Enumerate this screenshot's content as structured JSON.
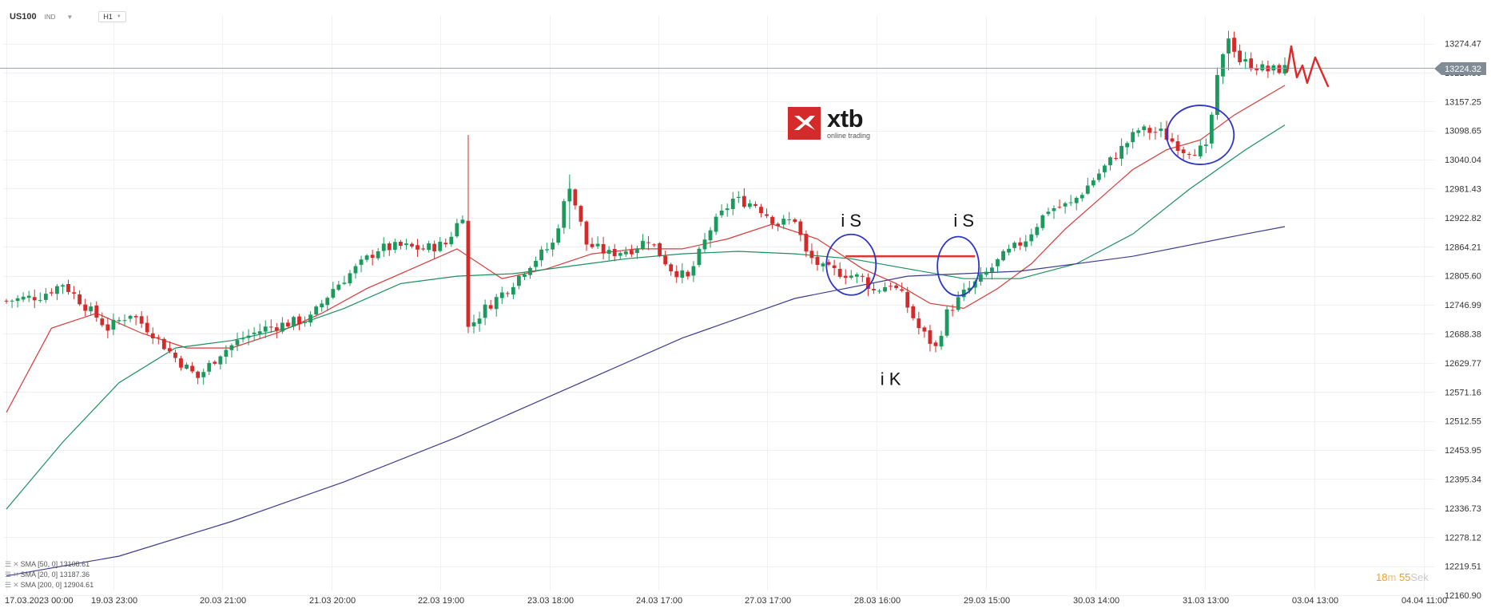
{
  "header": {
    "symbol": "US100",
    "asset_type": "IND",
    "timeframe": "H1"
  },
  "logo": {
    "name": "xtb",
    "tagline": "online trading"
  },
  "legend": [
    {
      "label": "SMA [50, 0] 13108.61"
    },
    {
      "label": "SMA [20, 0] 13187.36"
    },
    {
      "label": "SMA [200, 0] 12904.61"
    }
  ],
  "timer": {
    "minutes": "18",
    "minutes_unit": "m",
    "seconds": "55",
    "seconds_unit": "Sek"
  },
  "colors": {
    "bull": "#1a9a5c",
    "bear": "#d42a2a",
    "sma_red": "#d83a3a",
    "sma_green": "#1b8f5e",
    "sma_blue": "#3b3b8f",
    "circle": "#2d34c8",
    "current_price_bg": "#808b96"
  },
  "chart_data": {
    "type": "candlestick",
    "title": "",
    "ylim": [
      12130,
      13330
    ],
    "y_ticks": [
      13274.47,
      13215.86,
      13157.25,
      13098.65,
      13040.04,
      12981.43,
      12922.82,
      12864.21,
      12805.6,
      12746.99,
      12688.38,
      12629.77,
      12571.16,
      12512.55,
      12453.95,
      12395.34,
      12336.73,
      12278.12,
      12219.51,
      12160.9
    ],
    "x_ticks": [
      "17.03.2023 00:00",
      "19.03 23:00",
      "20.03 21:00",
      "21.03 20:00",
      "22.03 19:00",
      "23.03 18:00",
      "24.03 17:00",
      "27.03 17:00",
      "28.03 16:00",
      "29.03 15:00",
      "30.03 14:00",
      "31.03 13:00",
      "03.04 13:00",
      "04.04 11:00"
    ],
    "current_price": 13224.32,
    "candles_count": 228,
    "close_path": [
      [
        0,
        12755
      ],
      [
        6,
        12765
      ],
      [
        10,
        12790
      ],
      [
        14,
        12745
      ],
      [
        18,
        12700
      ],
      [
        22,
        12730
      ],
      [
        26,
        12690
      ],
      [
        30,
        12640
      ],
      [
        34,
        12600
      ],
      [
        38,
        12650
      ],
      [
        42,
        12680
      ],
      [
        46,
        12700
      ],
      [
        50,
        12710
      ],
      [
        54,
        12720
      ],
      [
        58,
        12780
      ],
      [
        62,
        12820
      ],
      [
        66,
        12860
      ],
      [
        70,
        12865
      ],
      [
        74,
        12860
      ],
      [
        78,
        12870
      ],
      [
        81,
        12930
      ],
      [
        82,
        12700
      ],
      [
        85,
        12740
      ],
      [
        89,
        12780
      ],
      [
        93,
        12830
      ],
      [
        97,
        12870
      ],
      [
        100,
        12990
      ],
      [
        103,
        12870
      ],
      [
        107,
        12850
      ],
      [
        111,
        12860
      ],
      [
        114,
        12880
      ],
      [
        118,
        12820
      ],
      [
        121,
        12800
      ],
      [
        125,
        12900
      ],
      [
        129,
        12960
      ],
      [
        133,
        12950
      ],
      [
        137,
        12910
      ],
      [
        140,
        12920
      ],
      [
        142,
        12850
      ],
      [
        145,
        12820
      ],
      [
        149,
        12810
      ],
      [
        152,
        12800
      ],
      [
        154,
        12775
      ],
      [
        157,
        12790
      ],
      [
        159,
        12765
      ],
      [
        162,
        12700
      ],
      [
        165,
        12660
      ],
      [
        167,
        12730
      ],
      [
        170,
        12770
      ],
      [
        173,
        12800
      ],
      [
        177,
        12845
      ],
      [
        181,
        12880
      ],
      [
        185,
        12940
      ],
      [
        189,
        12950
      ],
      [
        193,
        13000
      ],
      [
        197,
        13050
      ],
      [
        201,
        13100
      ],
      [
        205,
        13095
      ],
      [
        209,
        13060
      ],
      [
        213,
        13060
      ],
      [
        215,
        13200
      ],
      [
        217,
        13290
      ],
      [
        219,
        13240
      ],
      [
        224,
        13220
      ],
      [
        227,
        13224
      ]
    ],
    "series": [
      {
        "name": "SMA [20, 0]",
        "color": "#d83a3a",
        "points": [
          [
            0,
            12530
          ],
          [
            8,
            12700
          ],
          [
            16,
            12730
          ],
          [
            24,
            12690
          ],
          [
            32,
            12660
          ],
          [
            40,
            12660
          ],
          [
            48,
            12690
          ],
          [
            56,
            12730
          ],
          [
            64,
            12780
          ],
          [
            72,
            12820
          ],
          [
            80,
            12860
          ],
          [
            88,
            12800
          ],
          [
            96,
            12820
          ],
          [
            104,
            12850
          ],
          [
            112,
            12860
          ],
          [
            120,
            12860
          ],
          [
            128,
            12880
          ],
          [
            136,
            12910
          ],
          [
            144,
            12880
          ],
          [
            152,
            12820
          ],
          [
            158,
            12790
          ],
          [
            164,
            12750
          ],
          [
            170,
            12740
          ],
          [
            176,
            12780
          ],
          [
            182,
            12830
          ],
          [
            188,
            12900
          ],
          [
            194,
            12960
          ],
          [
            200,
            13020
          ],
          [
            206,
            13060
          ],
          [
            212,
            13080
          ],
          [
            218,
            13130
          ],
          [
            224,
            13170
          ],
          [
            227,
            13190
          ]
        ]
      },
      {
        "name": "SMA [50, 0]",
        "color": "#1b8f5e",
        "points": [
          [
            0,
            12335
          ],
          [
            10,
            12470
          ],
          [
            20,
            12590
          ],
          [
            30,
            12660
          ],
          [
            40,
            12675
          ],
          [
            50,
            12700
          ],
          [
            60,
            12740
          ],
          [
            70,
            12790
          ],
          [
            80,
            12805
          ],
          [
            90,
            12810
          ],
          [
            100,
            12825
          ],
          [
            110,
            12840
          ],
          [
            120,
            12850
          ],
          [
            130,
            12855
          ],
          [
            140,
            12850
          ],
          [
            150,
            12840
          ],
          [
            160,
            12820
          ],
          [
            170,
            12800
          ],
          [
            180,
            12800
          ],
          [
            190,
            12830
          ],
          [
            200,
            12890
          ],
          [
            210,
            12980
          ],
          [
            220,
            13060
          ],
          [
            227,
            13110
          ]
        ]
      },
      {
        "name": "SMA [200, 0]",
        "color": "#3b3b8f",
        "points": [
          [
            0,
            12200
          ],
          [
            20,
            12240
          ],
          [
            40,
            12310
          ],
          [
            60,
            12390
          ],
          [
            80,
            12480
          ],
          [
            100,
            12580
          ],
          [
            120,
            12680
          ],
          [
            140,
            12760
          ],
          [
            160,
            12805
          ],
          [
            180,
            12815
          ],
          [
            200,
            12845
          ],
          [
            220,
            12890
          ],
          [
            227,
            12905
          ]
        ]
      }
    ],
    "annotations": [
      {
        "type": "text",
        "label": "i S",
        "x": 150,
        "y": 12905
      },
      {
        "type": "text",
        "label": "i S",
        "x": 170,
        "y": 12905
      },
      {
        "type": "text",
        "label": "i K",
        "x": 157,
        "y": 12585
      },
      {
        "type": "hline",
        "x1": 149,
        "x2": 172,
        "y": 12845
      },
      {
        "type": "circle",
        "x": 150,
        "y": 12828
      },
      {
        "type": "circle",
        "x": 169,
        "y": 12825
      },
      {
        "type": "circle",
        "x": 212,
        "y": 13090
      }
    ]
  }
}
